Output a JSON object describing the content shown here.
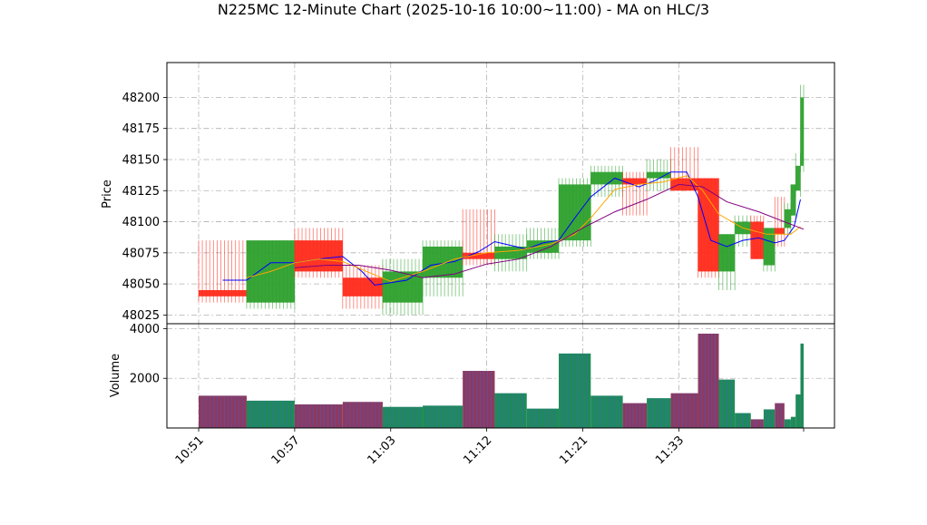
{
  "chart_data": {
    "type": "candlestick",
    "title": "N225MC 12-Minute Chart (2025-10-16 10:00~11:00) - MA on HLC/3",
    "price_panel": {
      "ylabel": "Price",
      "ylim": [
        48018,
        48228
      ],
      "yticks": [
        48025,
        48050,
        48075,
        48100,
        48125,
        48150,
        48175,
        48200
      ],
      "grid": true
    },
    "volume_panel": {
      "ylabel": "Volume",
      "ylim": [
        0,
        4200
      ],
      "yticks": [
        2000,
        4000
      ],
      "grid": true
    },
    "x_tick_labels": [
      "10:51",
      "10:57",
      "11:03",
      "11:12",
      "11:21",
      "11:33"
    ],
    "x_tick_positions": [
      0,
      6,
      12,
      18,
      24,
      30
    ],
    "bars": [
      {
        "o": 48045,
        "h": 48085,
        "l": 48035,
        "c": 48040,
        "v": 1300
      },
      {
        "o": 48035,
        "h": 48085,
        "l": 48030,
        "c": 48085,
        "v": 1100
      },
      {
        "o": 48085,
        "h": 48095,
        "l": 48055,
        "c": 48060,
        "v": 950
      },
      {
        "o": 48055,
        "h": 48065,
        "l": 48030,
        "c": 48040,
        "v": 1050
      },
      {
        "o": 48035,
        "h": 48070,
        "l": 48025,
        "c": 48060,
        "v": 850
      },
      {
        "o": 48055,
        "h": 48085,
        "l": 48040,
        "c": 48080,
        "v": 900
      },
      {
        "o": 48075,
        "h": 48110,
        "l": 48065,
        "c": 48070,
        "v": 2300
      },
      {
        "o": 48070,
        "h": 48090,
        "l": 48060,
        "c": 48080,
        "v": 1400
      },
      {
        "o": 48075,
        "h": 48095,
        "l": 48070,
        "c": 48085,
        "v": 780
      },
      {
        "o": 48085,
        "h": 48135,
        "l": 48080,
        "c": 48130,
        "v": 3000
      },
      {
        "o": 48130,
        "h": 48145,
        "l": 48120,
        "c": 48140,
        "v": 1300
      },
      {
        "o": 48135,
        "h": 48140,
        "l": 48105,
        "c": 48130,
        "v": 1000
      },
      {
        "o": 48135,
        "h": 48150,
        "l": 48125,
        "c": 48140,
        "v": 1200
      },
      {
        "o": 48135,
        "h": 48160,
        "l": 48125,
        "c": 48125,
        "v": 1400
      },
      {
        "o": 48135,
        "h": 48135,
        "l": 48055,
        "c": 48060,
        "v": 3800
      },
      {
        "o": 48060,
        "h": 48090,
        "l": 48045,
        "c": 48090,
        "v": 1950
      },
      {
        "o": 48090,
        "h": 48105,
        "l": 48080,
        "c": 48100,
        "v": 600
      },
      {
        "o": 48100,
        "h": 48105,
        "l": 48070,
        "c": 48070,
        "v": 350
      },
      {
        "o": 48065,
        "h": 48095,
        "l": 48060,
        "c": 48095,
        "v": 750
      },
      {
        "o": 48095,
        "h": 48120,
        "l": 48080,
        "c": 48090,
        "v": 1000
      },
      {
        "o": 48095,
        "h": 48115,
        "l": 48090,
        "c": 48110,
        "v": 350
      },
      {
        "o": 48105,
        "h": 48130,
        "l": 48100,
        "c": 48130,
        "v": 450
      },
      {
        "o": 48125,
        "h": 48155,
        "l": 48120,
        "c": 48145,
        "v": 1350
      },
      {
        "o": 48145,
        "h": 48210,
        "l": 48140,
        "c": 48200,
        "v": 3400
      }
    ],
    "bar_spans": [
      [
        0,
        3
      ],
      [
        3,
        6
      ],
      [
        6,
        9
      ],
      [
        9,
        11.5
      ],
      [
        11.5,
        14
      ],
      [
        14,
        16.5
      ],
      [
        16.5,
        18.5
      ],
      [
        18.5,
        20.5
      ],
      [
        20.5,
        22.5
      ],
      [
        22.5,
        24.5
      ],
      [
        24.5,
        26.5
      ],
      [
        26.5,
        28
      ],
      [
        28,
        29.5
      ],
      [
        29.5,
        31.2
      ],
      [
        31.2,
        32.5
      ],
      [
        32.5,
        33.5
      ],
      [
        33.5,
        34.5
      ],
      [
        34.5,
        35.3
      ],
      [
        35.3,
        36.0
      ],
      [
        36.0,
        36.6
      ],
      [
        36.6,
        37.0
      ],
      [
        37.0,
        37.3
      ],
      [
        37.3,
        37.6
      ],
      [
        37.6,
        37.8
      ]
    ],
    "ma_series": [
      {
        "color": "#0000ff",
        "points": [
          [
            1.5,
            48053
          ],
          [
            3,
            48053
          ],
          [
            4.5,
            48067
          ],
          [
            6,
            48067
          ],
          [
            7.5,
            48070
          ],
          [
            9,
            48072
          ],
          [
            10.2,
            48060
          ],
          [
            11,
            48049
          ],
          [
            12,
            48051
          ],
          [
            13,
            48053
          ],
          [
            14.5,
            48065
          ],
          [
            16,
            48068
          ],
          [
            17.5,
            48076
          ],
          [
            18.5,
            48084
          ],
          [
            19.5,
            48081
          ],
          [
            20.5,
            48078
          ],
          [
            21.5,
            48083
          ],
          [
            22.5,
            48085
          ],
          [
            23.5,
            48103
          ],
          [
            24.5,
            48120
          ],
          [
            26,
            48135
          ],
          [
            27.5,
            48128
          ],
          [
            28.5,
            48133
          ],
          [
            29.5,
            48140
          ],
          [
            30.5,
            48140
          ],
          [
            31.2,
            48120
          ],
          [
            32,
            48085
          ],
          [
            33,
            48080
          ],
          [
            34,
            48085
          ],
          [
            35,
            48087
          ],
          [
            36,
            48083
          ],
          [
            36.6,
            48085
          ],
          [
            37.2,
            48096
          ],
          [
            37.6,
            48118
          ]
        ]
      },
      {
        "color": "#ffa500",
        "points": [
          [
            3,
            48055
          ],
          [
            4.5,
            48060
          ],
          [
            6,
            48067
          ],
          [
            7.5,
            48070
          ],
          [
            9,
            48068
          ],
          [
            10.5,
            48060
          ],
          [
            12,
            48052
          ],
          [
            14,
            48060
          ],
          [
            16,
            48070
          ],
          [
            18,
            48075
          ],
          [
            20,
            48077
          ],
          [
            22,
            48082
          ],
          [
            23.5,
            48090
          ],
          [
            24.5,
            48103
          ],
          [
            26,
            48126
          ],
          [
            27.5,
            48130
          ],
          [
            29,
            48132
          ],
          [
            30.5,
            48137
          ],
          [
            31.5,
            48125
          ],
          [
            32.5,
            48106
          ],
          [
            34,
            48095
          ],
          [
            35.5,
            48090
          ],
          [
            37,
            48090
          ],
          [
            37.6,
            48096
          ]
        ]
      },
      {
        "color": "#800080",
        "points": [
          [
            6,
            48063
          ],
          [
            8,
            48065
          ],
          [
            10,
            48065
          ],
          [
            12,
            48061
          ],
          [
            14,
            48055
          ],
          [
            16,
            48058
          ],
          [
            18,
            48066
          ],
          [
            20,
            48070
          ],
          [
            22,
            48080
          ],
          [
            24,
            48095
          ],
          [
            26,
            48108
          ],
          [
            28,
            48118
          ],
          [
            30,
            48130
          ],
          [
            31.5,
            48128
          ],
          [
            33,
            48116
          ],
          [
            35,
            48108
          ],
          [
            37,
            48098
          ],
          [
            37.8,
            48094
          ]
        ]
      }
    ]
  }
}
